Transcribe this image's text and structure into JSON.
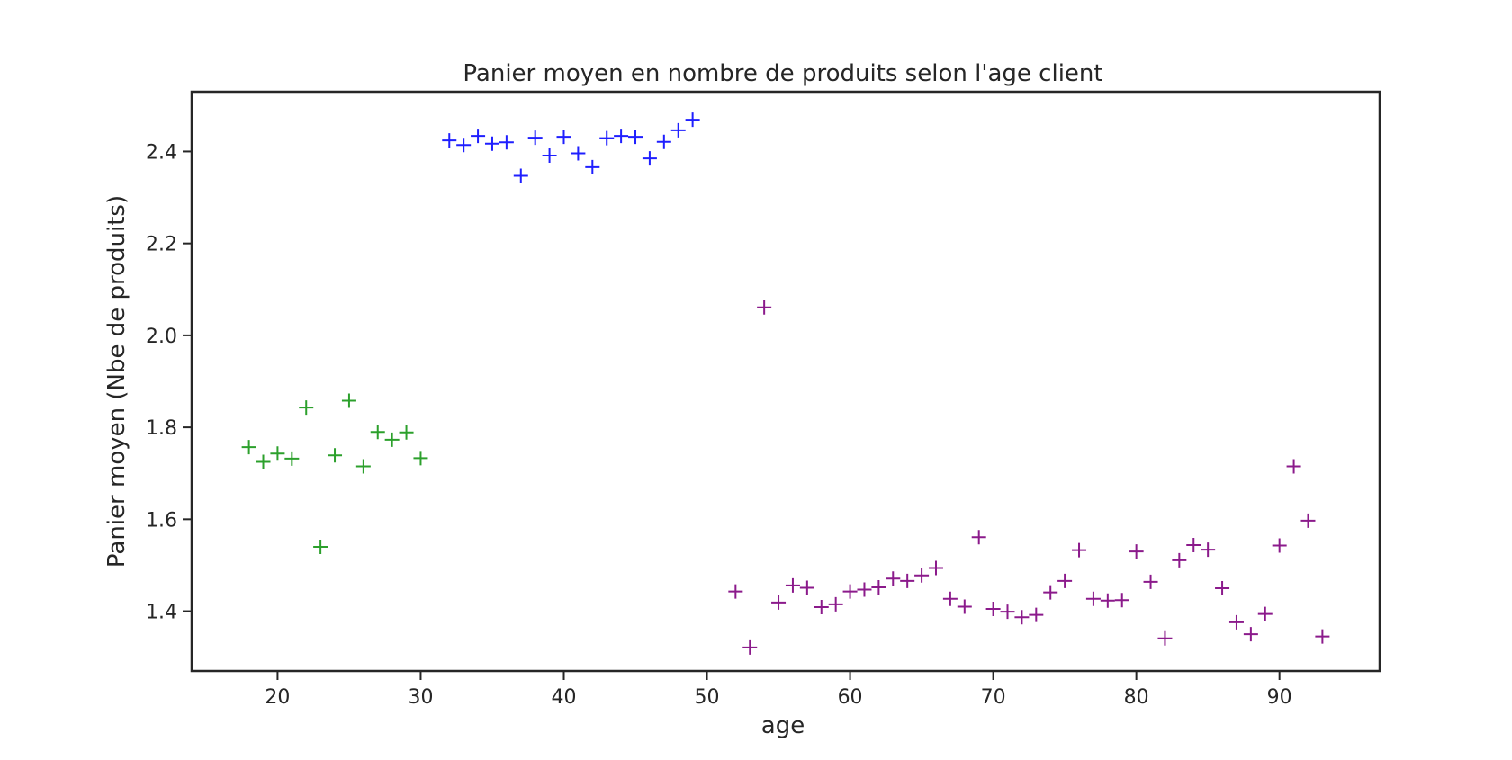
{
  "chart_data": {
    "type": "scatter",
    "title": "Panier moyen en nombre de produits selon l'age client",
    "xlabel": "age",
    "ylabel": "Panier moyen (Nbe de produits)",
    "xlim": [
      14,
      97
    ],
    "ylim": [
      1.27,
      2.53
    ],
    "x_ticks": [
      20,
      30,
      40,
      50,
      60,
      70,
      80,
      90
    ],
    "y_ticks": [
      1.4,
      1.6,
      1.8,
      2.0,
      2.2,
      2.4
    ],
    "grid": false,
    "marker": "+",
    "series": [
      {
        "color": "#2ca02c",
        "points": [
          [
            18,
            1.757
          ],
          [
            19,
            1.725
          ],
          [
            20,
            1.743
          ],
          [
            21,
            1.732
          ],
          [
            22,
            1.843
          ],
          [
            23,
            1.54
          ],
          [
            24,
            1.739
          ],
          [
            25,
            1.858
          ],
          [
            26,
            1.715
          ],
          [
            27,
            1.79
          ],
          [
            28,
            1.773
          ],
          [
            29,
            1.789
          ],
          [
            30,
            1.733
          ]
        ]
      },
      {
        "color": "#1f1fff",
        "points": [
          [
            32,
            2.424
          ],
          [
            33,
            2.414
          ],
          [
            34,
            2.434
          ],
          [
            35,
            2.417
          ],
          [
            36,
            2.42
          ],
          [
            37,
            2.347
          ],
          [
            38,
            2.43
          ],
          [
            39,
            2.391
          ],
          [
            40,
            2.432
          ],
          [
            41,
            2.396
          ],
          [
            42,
            2.366
          ],
          [
            43,
            2.429
          ],
          [
            44,
            2.434
          ],
          [
            45,
            2.432
          ],
          [
            46,
            2.385
          ],
          [
            47,
            2.421
          ],
          [
            48,
            2.446
          ],
          [
            49,
            2.469
          ]
        ]
      },
      {
        "color": "#8b1a8b",
        "points": [
          [
            52,
            1.443
          ],
          [
            53,
            1.321
          ],
          [
            54,
            2.061
          ],
          [
            55,
            1.419
          ],
          [
            56,
            1.456
          ],
          [
            57,
            1.451
          ],
          [
            58,
            1.409
          ],
          [
            59,
            1.415
          ],
          [
            60,
            1.443
          ],
          [
            61,
            1.447
          ],
          [
            62,
            1.452
          ],
          [
            63,
            1.471
          ],
          [
            64,
            1.466
          ],
          [
            65,
            1.478
          ],
          [
            66,
            1.494
          ],
          [
            67,
            1.427
          ],
          [
            68,
            1.41
          ],
          [
            69,
            1.561
          ],
          [
            70,
            1.405
          ],
          [
            71,
            1.399
          ],
          [
            72,
            1.387
          ],
          [
            73,
            1.392
          ],
          [
            74,
            1.441
          ],
          [
            75,
            1.466
          ],
          [
            76,
            1.533
          ],
          [
            77,
            1.427
          ],
          [
            78,
            1.423
          ],
          [
            79,
            1.424
          ],
          [
            80,
            1.53
          ],
          [
            81,
            1.464
          ],
          [
            82,
            1.341
          ],
          [
            83,
            1.511
          ],
          [
            84,
            1.544
          ],
          [
            85,
            1.534
          ],
          [
            86,
            1.45
          ],
          [
            87,
            1.376
          ],
          [
            88,
            1.35
          ],
          [
            89,
            1.394
          ],
          [
            90,
            1.543
          ],
          [
            91,
            1.715
          ],
          [
            92,
            1.597
          ],
          [
            93,
            1.345
          ]
        ]
      }
    ]
  }
}
